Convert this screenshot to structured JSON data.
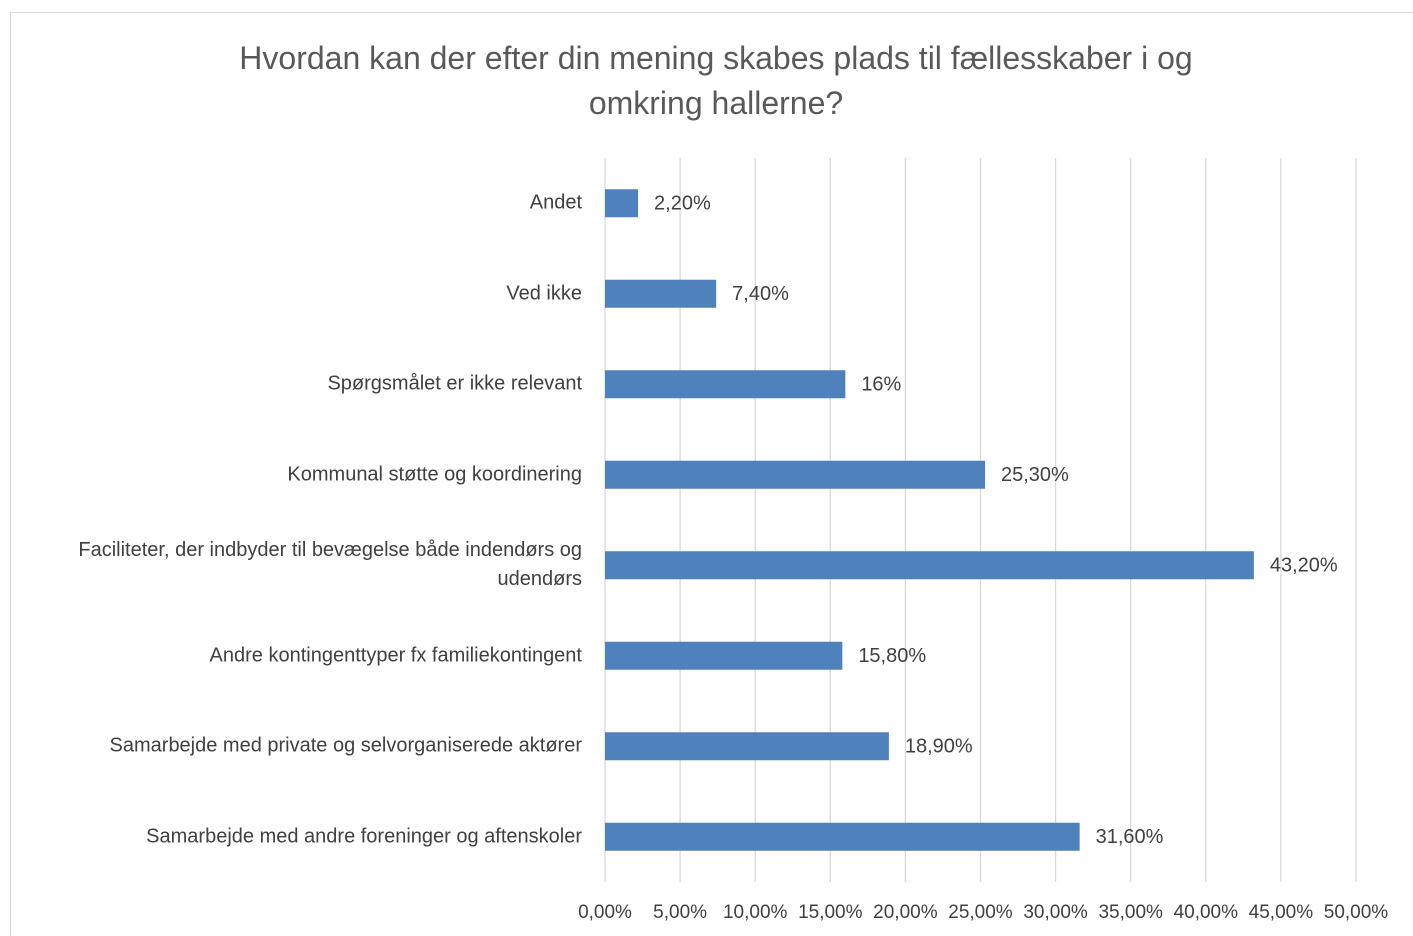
{
  "chart_data": {
    "type": "bar",
    "orientation": "horizontal",
    "title": "Hvordan kan der efter din mening skabes plads til fællesskaber i og omkring hallerne?",
    "categories": [
      "Andet",
      "Ved ikke",
      "Spørgsmålet er ikke relevant",
      "Kommunal støtte og koordinering",
      "Faciliteter, der indbyder til bevægelse både indendørs og udendørs",
      "Andre kontingenttyper fx familiekontingent",
      "Samarbejde med private og selvorganiserede aktører",
      "Samarbejde med andre foreninger og aftenskoler"
    ],
    "values": [
      2.2,
      7.4,
      16,
      25.3,
      43.2,
      15.8,
      18.9,
      31.6
    ],
    "value_labels": [
      "2,20%",
      "7,40%",
      "16%",
      "25,30%",
      "43,20%",
      "15,80%",
      "18,90%",
      "31,60%"
    ],
    "color": "#4f81bd",
    "xlim": [
      0,
      50
    ],
    "xticks": [
      {
        "value": 0,
        "label": "0,00%"
      },
      {
        "value": 5,
        "label": "5,00%"
      },
      {
        "value": 10,
        "label": "10,00%"
      },
      {
        "value": 15,
        "label": "15,00%"
      },
      {
        "value": 20,
        "label": "20,00%"
      },
      {
        "value": 25,
        "label": "25,00%"
      },
      {
        "value": 30,
        "label": "30,00%"
      },
      {
        "value": 35,
        "label": "35,00%"
      },
      {
        "value": 40,
        "label": "40,00%"
      },
      {
        "value": 45,
        "label": "45,00%"
      },
      {
        "value": 50,
        "label": "50,00%"
      }
    ],
    "grid": true
  }
}
